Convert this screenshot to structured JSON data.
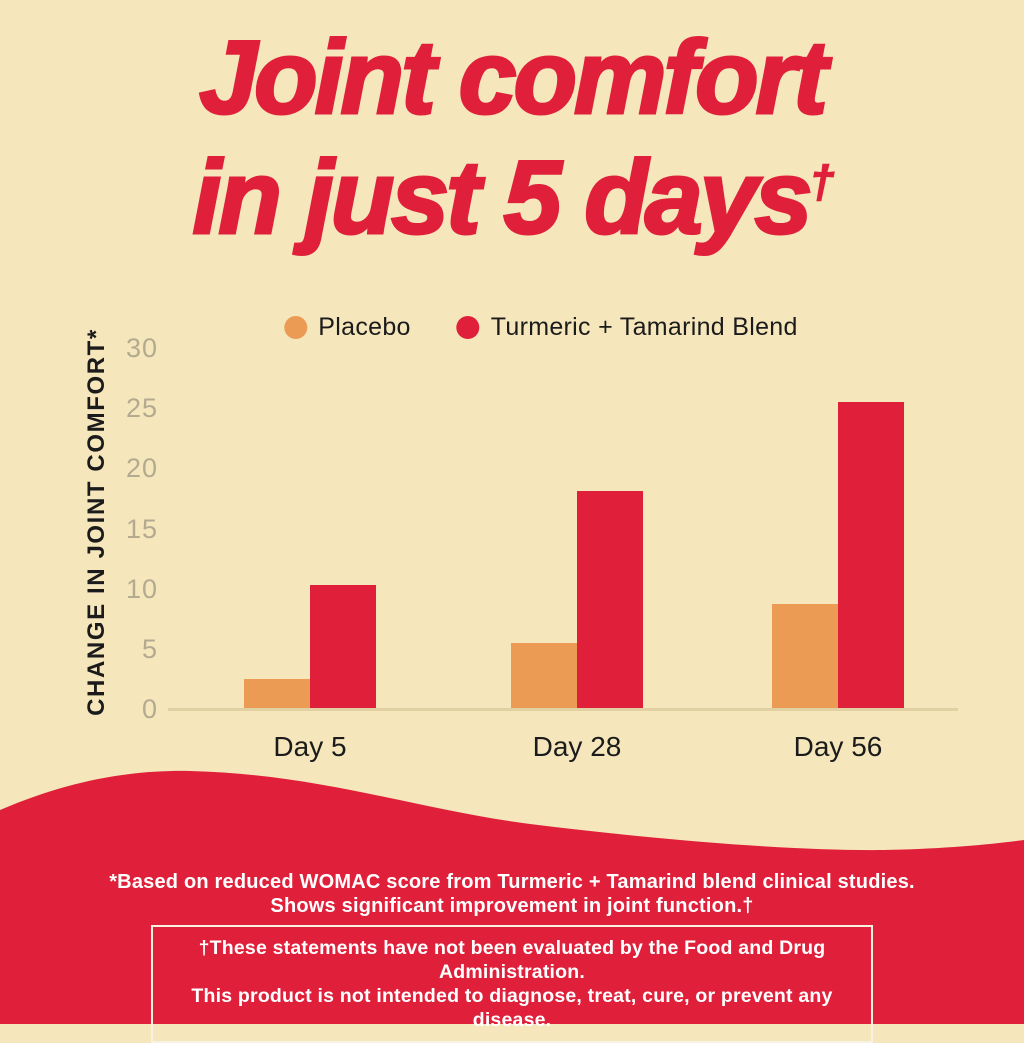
{
  "title": {
    "line1": "Joint comfort",
    "line2": "in just 5 days",
    "dagger": "†"
  },
  "colors": {
    "background": "#f5e6bc",
    "red": "#e0203a",
    "orange": "#eb9b53",
    "tick_label": "#b3aa90",
    "dark_text": "#1b1b1b",
    "axis_line": "#e0d0a2",
    "footer_text": "#ffffff"
  },
  "legend": [
    {
      "label": "Placebo",
      "color": "#eb9b53"
    },
    {
      "label": "Turmeric + Tamarind Blend",
      "color": "#e0203a"
    }
  ],
  "chart_data": {
    "type": "bar",
    "title": "Joint comfort in just 5 days†",
    "categories": [
      "Day 5",
      "Day 28",
      "Day 56"
    ],
    "series": [
      {
        "name": "Placebo",
        "color": "#eb9b53",
        "values": [
          2.5,
          5.5,
          8.7
        ]
      },
      {
        "name": "Turmeric + Tamarind Blend",
        "color": "#e0203a",
        "values": [
          10.3,
          18.1,
          25.5
        ]
      }
    ],
    "xlabel": "",
    "ylabel": "CHANGE IN JOINT COMFORT*",
    "yticks": [
      0,
      5,
      10,
      15,
      20,
      25,
      30
    ],
    "ylim": [
      0,
      30
    ],
    "grid": false,
    "legend_position": "top"
  },
  "footnotes": {
    "note_line1": "*Based on reduced WOMAC score from Turmeric + Tamarind blend clinical studies.",
    "note_line2": "Shows significant improvement in joint function.†",
    "disclaimer_line1": "†These statements have not been evaluated by the Food and Drug Administration.",
    "disclaimer_line2": "This product is not intended to diagnose, treat, cure, or prevent any disease."
  }
}
